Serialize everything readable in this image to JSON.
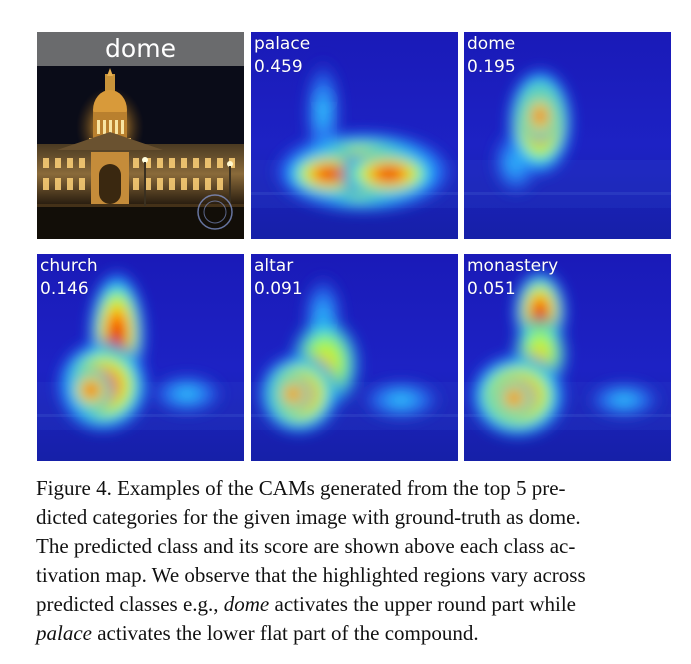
{
  "figure": {
    "input": {
      "label": "dome"
    },
    "maps": [
      {
        "class": "palace",
        "score": "0.459"
      },
      {
        "class": "dome",
        "score": "0.195"
      },
      {
        "class": "church",
        "score": "0.146"
      },
      {
        "class": "altar",
        "score": "0.091"
      },
      {
        "class": "monastery",
        "score": "0.051"
      }
    ]
  },
  "caption": {
    "line1": "Figure 4. Examples of the CAMs generated from the top 5 pre-",
    "line2": "dicted categories for the given image with ground-truth as dome.",
    "line3": "The predicted class and its score are shown above each class ac-",
    "line4": "tivation map. We observe that the highlighted regions vary across",
    "line5_pre": "predicted classes e.g., ",
    "line5_em": "dome",
    "line5_post": " activates the upper round part while",
    "line6_em": "palace",
    "line6_post": " activates the lower flat part of the compound."
  },
  "colors": {
    "cam_low": "#1a1ab8",
    "cam_high": "#b80000",
    "night_sky": "#0a0c18",
    "building_light": "#e0a040"
  }
}
